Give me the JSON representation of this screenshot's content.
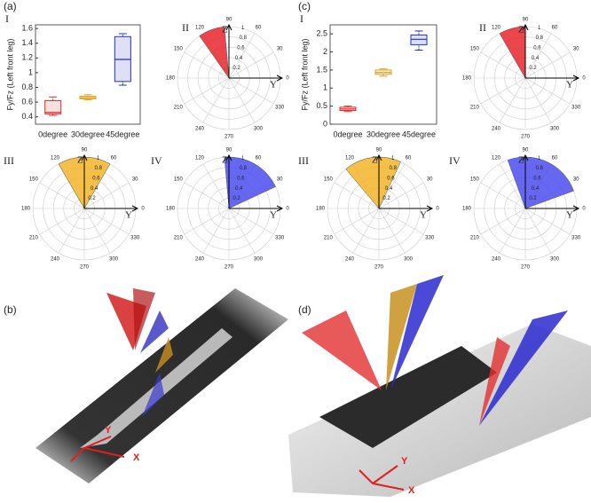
{
  "chart_data": [
    {
      "type": "box",
      "panel": "(a)",
      "numeral": "I",
      "ylabel": "Fy/Fz (Left front leg)",
      "categories": [
        "0degree",
        "30degree",
        "45degree"
      ],
      "boxes": [
        {
          "min": 0.42,
          "q1": 0.44,
          "median": 0.46,
          "q3": 0.62,
          "max": 0.67
        },
        {
          "min": 0.63,
          "q1": 0.645,
          "median": 0.66,
          "q3": 0.68,
          "max": 0.7
        },
        {
          "min": 0.83,
          "q1": 0.88,
          "median": 1.18,
          "q3": 1.49,
          "max": 1.53
        }
      ],
      "colors": [
        "#e03030",
        "#e0a020",
        "#2030d0"
      ],
      "ylim": [
        0.3,
        1.65
      ],
      "yticks": [
        0.4,
        0.6,
        0.8,
        1,
        1.2,
        1.4,
        1.6
      ]
    },
    {
      "type": "polar",
      "numeral": "II",
      "sector": {
        "theta": [
          95,
          125
        ],
        "r": 1
      },
      "color": "#e8262b",
      "rlim": [
        0,
        1
      ],
      "rticks": [
        0.2,
        0.4,
        0.6,
        0.8,
        1
      ],
      "thetaticks": [
        0,
        30,
        60,
        90,
        120,
        150,
        180,
        210,
        240,
        270,
        300,
        330
      ],
      "axis_labels": [
        "Z",
        "Y"
      ]
    },
    {
      "type": "polar",
      "numeral": "III",
      "sector": {
        "theta": [
          60,
          120
        ],
        "r": 1
      },
      "color": "#f2b52a",
      "rlim": [
        0,
        1
      ],
      "rticks": [
        0.2,
        0.4,
        0.6,
        0.8,
        1
      ],
      "thetaticks": [
        0,
        30,
        60,
        90,
        120,
        150,
        180,
        210,
        240,
        270,
        300,
        330
      ],
      "axis_labels": [
        "Z",
        "Y"
      ]
    },
    {
      "type": "polar",
      "numeral": "IV",
      "sector": {
        "theta": [
          25,
          95
        ],
        "r": 1
      },
      "color": "#4b4ef0",
      "rlim": [
        0,
        1
      ],
      "rticks": [
        0.2,
        0.4,
        0.6,
        0.8,
        1
      ],
      "thetaticks": [
        0,
        30,
        60,
        90,
        120,
        150,
        180,
        210,
        240,
        270,
        300,
        330
      ],
      "axis_labels": [
        "Z",
        "Y"
      ]
    },
    {
      "type": "box",
      "panel": "(c)",
      "numeral": "I",
      "ylabel": "Fy/Fz (Left front leg)",
      "categories": [
        "0degree",
        "30degree",
        "45degree"
      ],
      "boxes": [
        {
          "min": 0.35,
          "q1": 0.38,
          "median": 0.42,
          "q3": 0.47,
          "max": 0.5
        },
        {
          "min": 1.33,
          "q1": 1.38,
          "median": 1.43,
          "q3": 1.5,
          "max": 1.53
        },
        {
          "min": 2.05,
          "q1": 2.2,
          "median": 2.35,
          "q3": 2.47,
          "max": 2.58
        }
      ],
      "colors": [
        "#e03030",
        "#e0a020",
        "#2030d0"
      ],
      "ylim": [
        0,
        2.75
      ],
      "yticks": [
        0,
        0.5,
        1,
        1.5,
        2,
        2.5
      ]
    },
    {
      "type": "polar",
      "numeral": "II",
      "sector": {
        "theta": [
          90,
          120
        ],
        "r": 1
      },
      "color": "#e8262b",
      "rlim": [
        0,
        1
      ],
      "rticks": [
        0.2,
        0.4,
        0.6,
        0.8,
        1
      ],
      "thetaticks": [
        0,
        30,
        60,
        90,
        120,
        150,
        180,
        210,
        240,
        270,
        300,
        330
      ],
      "axis_labels": [
        "Z",
        "Y"
      ]
    },
    {
      "type": "polar",
      "numeral": "III",
      "sector": {
        "theta": [
          65,
          130
        ],
        "r": 1
      },
      "color": "#f2b52a",
      "rlim": [
        0,
        1
      ],
      "rticks": [
        0.2,
        0.4,
        0.6,
        0.8,
        1
      ],
      "thetaticks": [
        0,
        30,
        60,
        90,
        120,
        150,
        180,
        210,
        240,
        270,
        300,
        330
      ],
      "axis_labels": [
        "Z",
        "Y"
      ]
    },
    {
      "type": "polar",
      "numeral": "IV",
      "sector": {
        "theta": [
          20,
          110
        ],
        "r": 1
      },
      "color": "#4b4ef0",
      "rlim": [
        0,
        1
      ],
      "rticks": [
        0.2,
        0.4,
        0.6,
        0.8,
        1
      ],
      "thetaticks": [
        0,
        30,
        60,
        90,
        120,
        150,
        180,
        210,
        240,
        270,
        300,
        330
      ],
      "axis_labels": [
        "Z",
        "Y"
      ]
    }
  ],
  "photos": [
    {
      "panel": "(b)",
      "axis_labels": [
        "Y",
        "X"
      ]
    },
    {
      "panel": "(d)",
      "axis_labels": [
        "Y",
        "X"
      ]
    }
  ]
}
